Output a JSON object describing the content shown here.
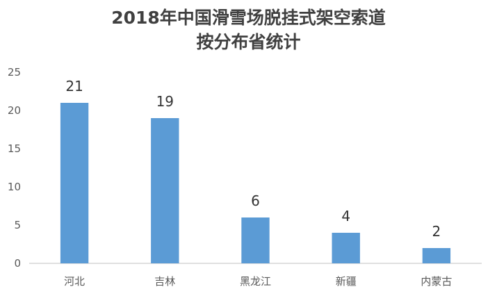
{
  "chart_data": {
    "type": "bar",
    "title_line1": "2018年中国滑雪场脱挂式架空索道",
    "title_line2": "按分布省统计",
    "categories": [
      "河北",
      "吉林",
      "黑龙江",
      "新疆",
      "内蒙古"
    ],
    "values": [
      21,
      19,
      6,
      4,
      2
    ],
    "yticks": [
      "0",
      "5",
      "10",
      "15",
      "20",
      "25"
    ],
    "ylim": [
      0,
      25
    ],
    "grid": false,
    "bar_color": "#5b9bd5",
    "axis_color": "#bfbfbf"
  }
}
